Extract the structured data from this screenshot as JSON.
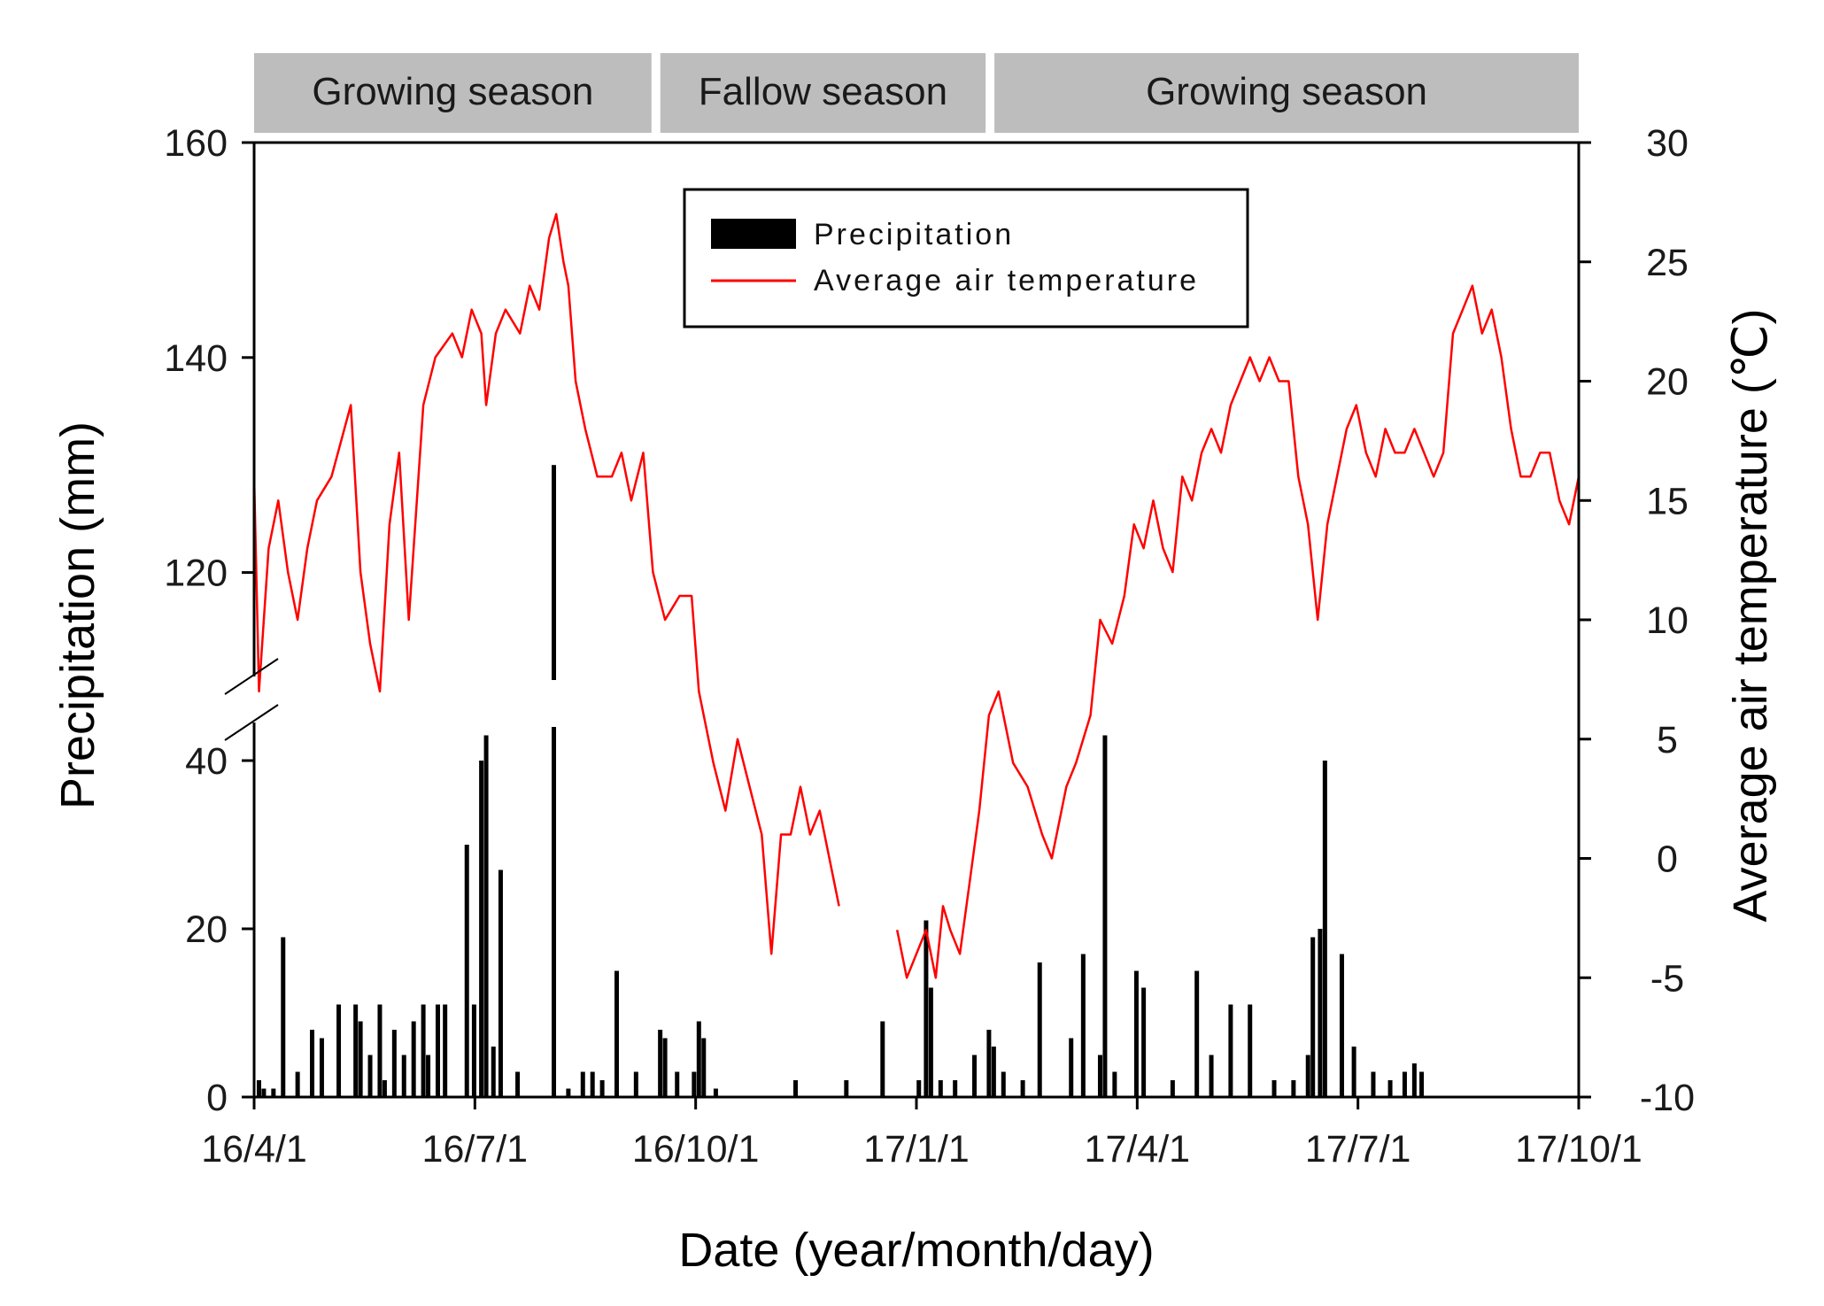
{
  "colors": {
    "temperature": "#ff0000",
    "precipitation": "#000000",
    "season_band": "#bdbdbd",
    "axis": "#000000"
  },
  "chart_data": {
    "type": "bar+line",
    "title": "",
    "seasons": [
      {
        "label": "Growing season",
        "start": "16/4/1",
        "end": "16/9/15"
      },
      {
        "label": "Fallow season",
        "start": "16/9/15",
        "end": "17/2/1"
      },
      {
        "label": "Growing season",
        "start": "17/2/1",
        "end": "17/10/1"
      }
    ],
    "x_axis": {
      "label": "Date (year/month/day)",
      "ticks": [
        "16/4/1",
        "16/7/1",
        "16/10/1",
        "17/1/1",
        "17/4/1",
        "17/7/1",
        "17/10/1"
      ],
      "range_days": [
        0,
        548
      ]
    },
    "y_left": {
      "label": "Precipitation (mm)",
      "broken_axis": true,
      "lower_ticks": [
        0,
        20,
        40
      ],
      "upper_ticks": [
        120,
        140,
        160
      ],
      "lower_range": [
        0,
        44
      ],
      "upper_range": [
        110,
        160
      ]
    },
    "y_right": {
      "label": "Average air temperature (℃)",
      "ticks": [
        -10,
        -5,
        0,
        5,
        10,
        15,
        20,
        25,
        30
      ],
      "range": [
        -10,
        30
      ]
    },
    "legend": {
      "position": "top-center",
      "items": [
        {
          "label": "Precipitation",
          "kind": "bar"
        },
        {
          "label": "Average air temperature",
          "kind": "line"
        }
      ]
    },
    "series": [
      {
        "name": "Precipitation",
        "axis": "left",
        "unit": "mm",
        "points": [
          [
            2,
            2
          ],
          [
            4,
            1
          ],
          [
            8,
            1
          ],
          [
            12,
            19
          ],
          [
            18,
            3
          ],
          [
            24,
            8
          ],
          [
            28,
            7
          ],
          [
            35,
            11
          ],
          [
            42,
            11
          ],
          [
            44,
            9
          ],
          [
            48,
            5
          ],
          [
            52,
            11
          ],
          [
            54,
            2
          ],
          [
            58,
            8
          ],
          [
            62,
            5
          ],
          [
            66,
            9
          ],
          [
            70,
            11
          ],
          [
            72,
            5
          ],
          [
            76,
            11
          ],
          [
            79,
            11
          ],
          [
            88,
            30
          ],
          [
            91,
            11
          ],
          [
            94,
            40
          ],
          [
            96,
            43
          ],
          [
            99,
            6
          ],
          [
            102,
            27
          ],
          [
            109,
            3
          ],
          [
            124,
            130
          ],
          [
            130,
            1
          ],
          [
            136,
            3
          ],
          [
            140,
            3
          ],
          [
            144,
            2
          ],
          [
            150,
            15
          ],
          [
            158,
            3
          ],
          [
            168,
            8
          ],
          [
            170,
            7
          ],
          [
            175,
            3
          ],
          [
            182,
            3
          ],
          [
            184,
            9
          ],
          [
            186,
            7
          ],
          [
            191,
            1
          ],
          [
            224,
            2
          ],
          [
            245,
            2
          ],
          [
            260,
            9
          ],
          [
            275,
            2
          ],
          [
            278,
            21
          ],
          [
            280,
            13
          ],
          [
            284,
            2
          ],
          [
            290,
            2
          ],
          [
            298,
            5
          ],
          [
            304,
            8
          ],
          [
            306,
            6
          ],
          [
            310,
            3
          ],
          [
            318,
            2
          ],
          [
            325,
            16
          ],
          [
            338,
            7
          ],
          [
            343,
            17
          ],
          [
            350,
            5
          ],
          [
            352,
            43
          ],
          [
            356,
            3
          ],
          [
            365,
            15
          ],
          [
            368,
            13
          ],
          [
            380,
            2
          ],
          [
            390,
            15
          ],
          [
            396,
            5
          ],
          [
            404,
            11
          ],
          [
            412,
            11
          ],
          [
            422,
            2
          ],
          [
            430,
            2
          ],
          [
            436,
            5
          ],
          [
            438,
            19
          ],
          [
            441,
            20
          ],
          [
            443,
            40
          ],
          [
            450,
            17
          ],
          [
            455,
            6
          ],
          [
            463,
            3
          ],
          [
            470,
            2
          ],
          [
            476,
            3
          ],
          [
            480,
            4
          ],
          [
            483,
            3
          ]
        ]
      },
      {
        "name": "Average air temperature",
        "axis": "right",
        "unit": "℃",
        "gap_days": [
          248,
          266
        ],
        "points": [
          [
            0,
            16
          ],
          [
            2,
            7
          ],
          [
            6,
            13
          ],
          [
            10,
            15
          ],
          [
            14,
            12
          ],
          [
            18,
            10
          ],
          [
            22,
            13
          ],
          [
            26,
            15
          ],
          [
            32,
            16
          ],
          [
            40,
            19
          ],
          [
            44,
            12
          ],
          [
            48,
            9
          ],
          [
            52,
            7
          ],
          [
            56,
            14
          ],
          [
            60,
            17
          ],
          [
            64,
            10
          ],
          [
            70,
            19
          ],
          [
            75,
            21
          ],
          [
            82,
            22
          ],
          [
            86,
            21
          ],
          [
            90,
            23
          ],
          [
            94,
            22
          ],
          [
            96,
            19
          ],
          [
            100,
            22
          ],
          [
            104,
            23
          ],
          [
            110,
            22
          ],
          [
            114,
            24
          ],
          [
            118,
            23
          ],
          [
            122,
            26
          ],
          [
            125,
            27
          ],
          [
            128,
            25
          ],
          [
            130,
            24
          ],
          [
            133,
            20
          ],
          [
            137,
            18
          ],
          [
            142,
            16
          ],
          [
            148,
            16
          ],
          [
            152,
            17
          ],
          [
            156,
            15
          ],
          [
            161,
            17
          ],
          [
            165,
            12
          ],
          [
            170,
            10
          ],
          [
            176,
            11
          ],
          [
            181,
            11
          ],
          [
            184,
            7
          ],
          [
            190,
            4
          ],
          [
            195,
            2
          ],
          [
            200,
            5
          ],
          [
            205,
            3
          ],
          [
            210,
            1
          ],
          [
            214,
            -4
          ],
          [
            218,
            1
          ],
          [
            222,
            1
          ],
          [
            226,
            3
          ],
          [
            230,
            1
          ],
          [
            234,
            2
          ],
          [
            238,
            0
          ],
          [
            242,
            -2
          ],
          [
            266,
            -3
          ],
          [
            270,
            -5
          ],
          [
            274,
            -4
          ],
          [
            278,
            -3
          ],
          [
            282,
            -5
          ],
          [
            285,
            -2
          ],
          [
            288,
            -3
          ],
          [
            292,
            -4
          ],
          [
            296,
            -1
          ],
          [
            300,
            2
          ],
          [
            304,
            6
          ],
          [
            308,
            7
          ],
          [
            314,
            4
          ],
          [
            320,
            3
          ],
          [
            326,
            1
          ],
          [
            330,
            0
          ],
          [
            336,
            3
          ],
          [
            340,
            4
          ],
          [
            346,
            6
          ],
          [
            350,
            10
          ],
          [
            355,
            9
          ],
          [
            360,
            11
          ],
          [
            364,
            14
          ],
          [
            368,
            13
          ],
          [
            372,
            15
          ],
          [
            376,
            13
          ],
          [
            380,
            12
          ],
          [
            384,
            16
          ],
          [
            388,
            15
          ],
          [
            392,
            17
          ],
          [
            396,
            18
          ],
          [
            400,
            17
          ],
          [
            404,
            19
          ],
          [
            408,
            20
          ],
          [
            412,
            21
          ],
          [
            416,
            20
          ],
          [
            420,
            21
          ],
          [
            424,
            20
          ],
          [
            428,
            20
          ],
          [
            432,
            16
          ],
          [
            436,
            14
          ],
          [
            440,
            10
          ],
          [
            444,
            14
          ],
          [
            448,
            16
          ],
          [
            452,
            18
          ],
          [
            456,
            19
          ],
          [
            460,
            17
          ],
          [
            464,
            16
          ],
          [
            468,
            18
          ],
          [
            472,
            17
          ],
          [
            476,
            17
          ],
          [
            480,
            18
          ],
          [
            484,
            17
          ],
          [
            488,
            16
          ],
          [
            492,
            17
          ],
          [
            496,
            22
          ],
          [
            500,
            23
          ],
          [
            504,
            24
          ],
          [
            508,
            22
          ],
          [
            512,
            23
          ],
          [
            516,
            21
          ],
          [
            520,
            18
          ],
          [
            524,
            16
          ],
          [
            528,
            16
          ],
          [
            532,
            17
          ],
          [
            536,
            17
          ],
          [
            540,
            15
          ],
          [
            544,
            14
          ],
          [
            548,
            16
          ]
        ]
      }
    ]
  }
}
